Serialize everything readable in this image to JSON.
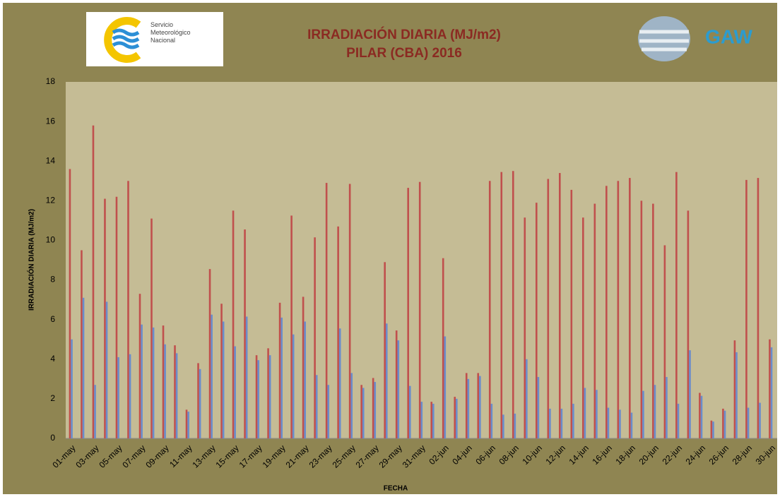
{
  "chart_data": {
    "type": "bar",
    "title": "IRRADIACIÓN DIARIA (MJ/m2)",
    "subtitle": "PILAR (CBA) 2016",
    "logo_left": "Servicio Meteorológico Nacional",
    "logo_right": "GAW",
    "x_label": "FECHA",
    "y_label": "IRRADIACIÓN DIARIA (MJ/m2)",
    "categories": [
      "01-may",
      null,
      "03-may",
      null,
      "05-may",
      null,
      "07-may",
      null,
      "09-may",
      null,
      "11-may",
      null,
      "13-may",
      null,
      "15-may",
      null,
      "17-may",
      null,
      "19-may",
      null,
      "21-may",
      null,
      "23-may",
      null,
      "25-may",
      null,
      "27-may",
      null,
      "29-may",
      null,
      "31-may",
      null,
      "02-jun",
      null,
      "04-jun",
      null,
      "06-jun",
      null,
      "08-jun",
      null,
      "10-jun",
      null,
      "12-jun",
      null,
      "14-jun",
      null,
      "16-jun",
      null,
      "18-jun",
      null,
      "20-jun",
      null,
      "22-jun",
      null,
      "24-jun",
      null,
      "26-jun",
      null,
      "28-jun",
      null,
      "30-jun"
    ],
    "series": [
      {
        "color": "#c0504d",
        "values": [
          13.6,
          9.5,
          15.8,
          12.1,
          12.2,
          13.0,
          7.3,
          11.1,
          5.7,
          4.7,
          1.45,
          3.8,
          8.55,
          6.8,
          11.5,
          10.55,
          4.2,
          4.55,
          6.85,
          11.25,
          7.15,
          10.15,
          12.9,
          10.7,
          12.85,
          2.7,
          3.05,
          8.9,
          5.45,
          12.65,
          12.95,
          1.85,
          9.1,
          2.1,
          3.3,
          3.3,
          13.0,
          13.45,
          13.5,
          11.15,
          11.9,
          13.1,
          13.4,
          12.55,
          11.15,
          11.85,
          12.75,
          13.0,
          13.15,
          12.0,
          11.85,
          9.75,
          13.45,
          11.5,
          2.3,
          0.9,
          1.5,
          4.95,
          13.05,
          13.15,
          5.0
        ]
      },
      {
        "color": "#6a8ccb",
        "values": [
          5.0,
          7.1,
          2.7,
          6.9,
          4.1,
          4.25,
          5.75,
          5.6,
          4.75,
          4.3,
          1.35,
          3.5,
          6.25,
          5.9,
          4.65,
          6.15,
          3.95,
          4.2,
          6.1,
          5.25,
          5.9,
          3.2,
          2.7,
          5.55,
          3.3,
          2.55,
          2.85,
          5.8,
          4.95,
          2.65,
          1.85,
          1.75,
          5.15,
          2.0,
          3.0,
          3.15,
          1.75,
          1.2,
          1.25,
          4.0,
          3.1,
          1.5,
          1.5,
          1.75,
          2.55,
          2.45,
          1.55,
          1.45,
          1.3,
          2.4,
          2.7,
          3.1,
          1.75,
          4.45,
          2.15,
          0.85,
          1.4,
          4.35,
          1.55,
          1.8,
          4.6
        ]
      }
    ],
    "ylim": [
      0,
      18
    ],
    "yticks": [
      0,
      2,
      4,
      6,
      8,
      10,
      12,
      14,
      16,
      18
    ],
    "grid": false
  }
}
